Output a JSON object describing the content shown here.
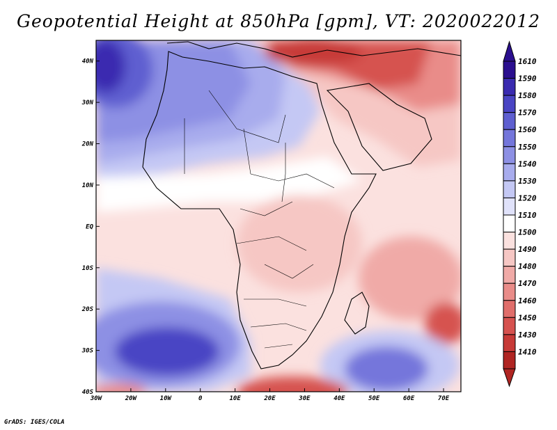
{
  "title": "Geopotential Height at 850hPa [gpm], VT: 2020022012",
  "credit": "GrADS: IGES/COLA",
  "map": {
    "lon_range": [
      -30,
      75
    ],
    "lat_range": [
      -40,
      45
    ],
    "lon_ticks": [
      {
        "value": -30,
        "label": "30W"
      },
      {
        "value": -20,
        "label": "20W"
      },
      {
        "value": -10,
        "label": "10W"
      },
      {
        "value": 0,
        "label": "0"
      },
      {
        "value": 10,
        "label": "10E"
      },
      {
        "value": 20,
        "label": "20E"
      },
      {
        "value": 30,
        "label": "30E"
      },
      {
        "value": 40,
        "label": "40E"
      },
      {
        "value": 50,
        "label": "50E"
      },
      {
        "value": 60,
        "label": "60E"
      },
      {
        "value": 70,
        "label": "70E"
      }
    ],
    "lat_ticks": [
      {
        "value": 40,
        "label": "40N"
      },
      {
        "value": 30,
        "label": "30N"
      },
      {
        "value": 20,
        "label": "20N"
      },
      {
        "value": 10,
        "label": "10N"
      },
      {
        "value": 0,
        "label": "EQ"
      },
      {
        "value": -10,
        "label": "10S"
      },
      {
        "value": -20,
        "label": "20S"
      },
      {
        "value": -30,
        "label": "30S"
      },
      {
        "value": -40,
        "label": "40S"
      }
    ],
    "field_features": [
      {
        "name": "low-mediterranean-middle-east",
        "lon": 30,
        "lat": 40,
        "value": 1420
      },
      {
        "name": "high-atlantic-north",
        "lon": -27,
        "lat": 33,
        "value": 1610
      },
      {
        "name": "high-sahara",
        "lon": 5,
        "lat": 27,
        "value": 1550
      },
      {
        "name": "high-south-atlantic",
        "lon": -12,
        "lat": -30,
        "value": 1580
      },
      {
        "name": "high-indian-ocean",
        "lon": 50,
        "lat": -33,
        "value": 1570
      },
      {
        "name": "low-mascarene",
        "lon": 70,
        "lat": -24,
        "value": 1440
      },
      {
        "name": "low-south-africa-coast",
        "lon": 28,
        "lat": -40,
        "value": 1430
      },
      {
        "name": "low-east-africa",
        "lon": 45,
        "lat": -5,
        "value": 1490
      }
    ]
  },
  "colorbar": {
    "levels": [
      {
        "label": "1610",
        "color": "#2b0f8f"
      },
      {
        "label": "1590",
        "color": "#3a2bb0"
      },
      {
        "label": "1580",
        "color": "#4a45c4"
      },
      {
        "label": "1570",
        "color": "#5e5fd0"
      },
      {
        "label": "1560",
        "color": "#7476db"
      },
      {
        "label": "1550",
        "color": "#8d90e4"
      },
      {
        "label": "1540",
        "color": "#a8aced"
      },
      {
        "label": "1530",
        "color": "#c4c8f4"
      },
      {
        "label": "1520",
        "color": "#e0e2fa"
      },
      {
        "label": "1510",
        "color": "#ffffff"
      },
      {
        "label": "1500",
        "color": "#fbe1df"
      },
      {
        "label": "1490",
        "color": "#f6c7c4"
      },
      {
        "label": "1480",
        "color": "#f0aaa7"
      },
      {
        "label": "1470",
        "color": "#e98c89"
      },
      {
        "label": "1460",
        "color": "#e06e6b"
      },
      {
        "label": "1450",
        "color": "#d6524f"
      },
      {
        "label": "1430",
        "color": "#c73a37"
      },
      {
        "label": "1410",
        "color": "#b02522"
      }
    ],
    "top_color": "#2b0f8f",
    "bottom_color": "#b02522"
  }
}
